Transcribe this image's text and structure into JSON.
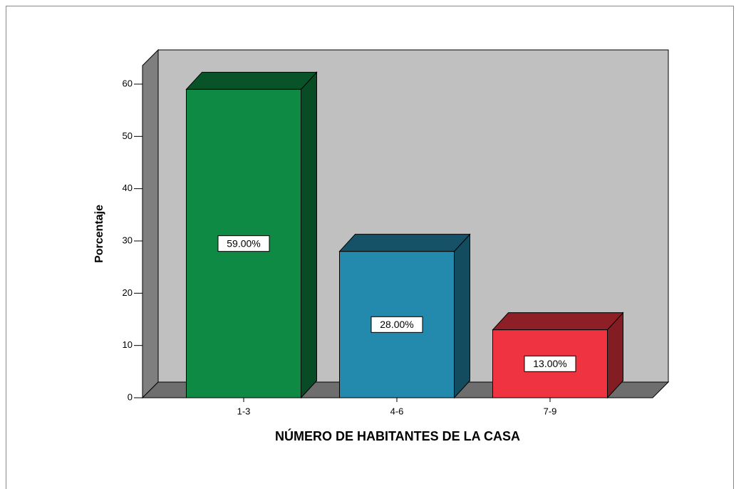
{
  "chart_data": {
    "type": "bar3d",
    "xlabel": "NÚMERO DE HABITANTES DE LA CASA",
    "ylabel": "Porcentaje",
    "categories": [
      "1-3",
      "4-6",
      "7-9"
    ],
    "values": [
      59,
      28,
      13
    ],
    "value_labels": [
      "59.00%",
      "28.00%",
      "13.00%"
    ],
    "colors": [
      "#0f8a45",
      "#2389ad",
      "#ef3340"
    ],
    "ylim": [
      0,
      60
    ],
    "yticks": [
      0,
      10,
      20,
      30,
      40,
      50,
      60
    ]
  }
}
